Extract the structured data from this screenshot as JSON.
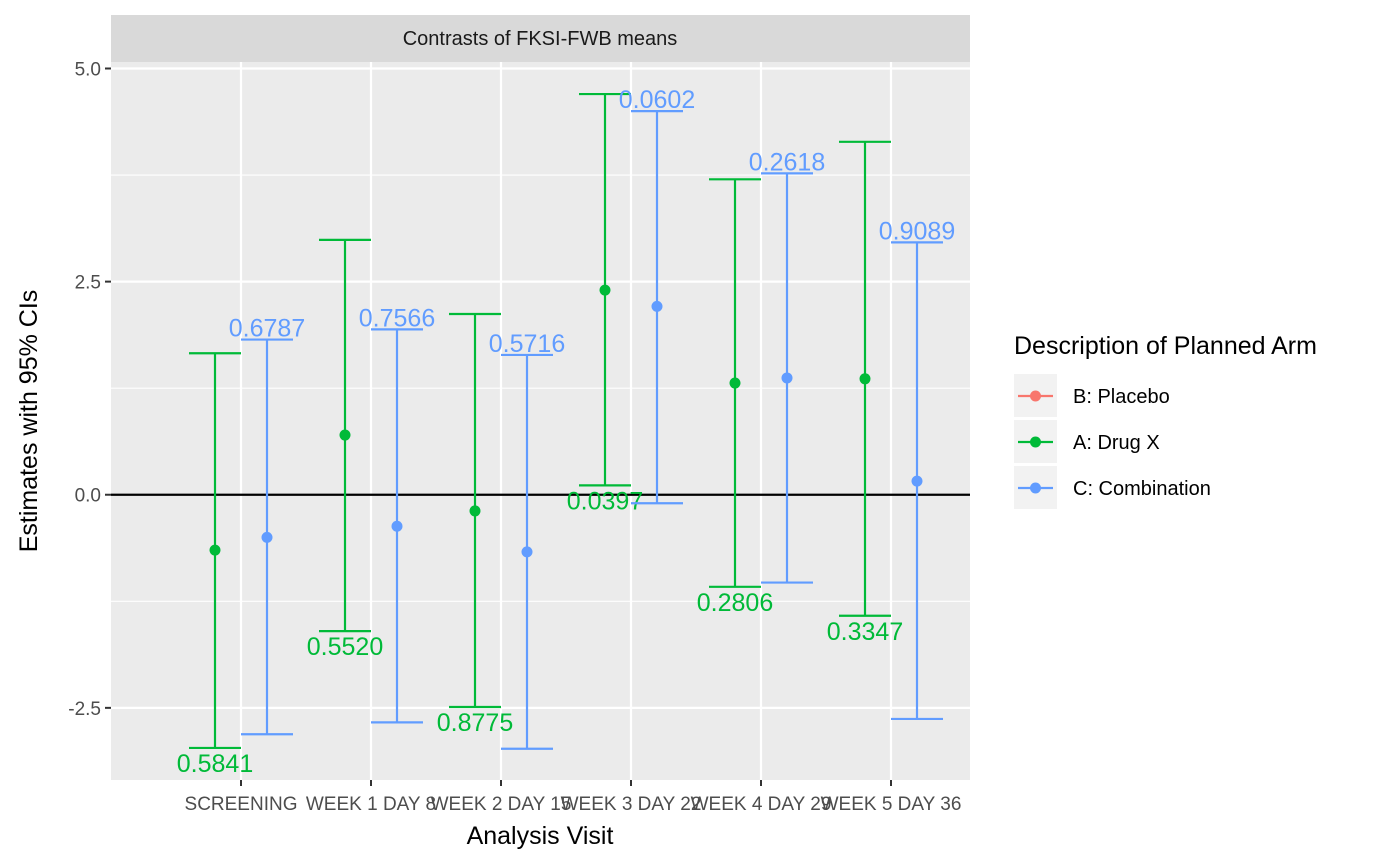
{
  "chart_data": {
    "type": "errorbar",
    "title": "Contrasts of FKSI-FWB means",
    "xlabel": "Analysis Visit",
    "ylabel": "Estimates with 95% CIs",
    "ylim": [
      -3.35,
      5.25
    ],
    "yticks": [
      -2.5,
      0.0,
      2.5,
      5.0
    ],
    "ytick_labels": [
      "-2.5",
      "0.0",
      "2.5",
      "5.0"
    ],
    "reference_line": 0,
    "grid": true,
    "legend_position": "right",
    "categories": [
      "SCREENING",
      "WEEK 1 DAY 8",
      "WEEK 2 DAY 15",
      "WEEK 3 DAY 22",
      "WEEK 4 DAY 29",
      "WEEK 5 DAY 36"
    ],
    "legend": {
      "title": "Description of Planned Arm",
      "entries": [
        {
          "label": "B: Placebo",
          "color": "#F8766D"
        },
        {
          "label": "A: Drug X",
          "color": "#00BA38"
        },
        {
          "label": "C: Combination",
          "color": "#619CFF"
        }
      ]
    },
    "series": [
      {
        "name": "A: Drug X",
        "color": "#00BA38",
        "offset": -0.2,
        "estimates": [
          -0.65,
          0.7,
          -0.19,
          2.4,
          1.31,
          1.36
        ],
        "lower": [
          -2.97,
          -1.6,
          -2.49,
          0.11,
          -1.08,
          -1.42
        ],
        "upper": [
          1.66,
          2.99,
          2.12,
          4.7,
          3.7,
          4.14
        ],
        "pvalues": [
          "0.5841",
          "0.5520",
          "0.8775",
          "0.0397",
          "0.2806",
          "0.3347"
        ],
        "pvalue_position": "below"
      },
      {
        "name": "C: Combination",
        "color": "#619CFF",
        "offset": 0.2,
        "estimates": [
          -0.5,
          -0.37,
          -0.67,
          2.21,
          1.37,
          0.16
        ],
        "lower": [
          -2.81,
          -2.67,
          -2.98,
          -0.1,
          -1.03,
          -2.63
        ],
        "upper": [
          1.82,
          1.94,
          1.64,
          4.5,
          3.77,
          2.96
        ],
        "pvalues": [
          "0.6787",
          "0.7566",
          "0.5716",
          "0.0602",
          "0.2618",
          "0.9089"
        ],
        "pvalue_position": "above"
      }
    ]
  }
}
